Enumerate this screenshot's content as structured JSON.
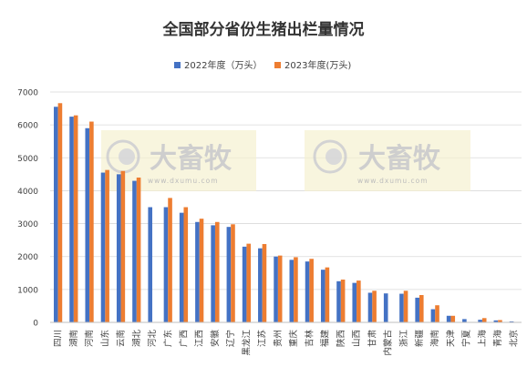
{
  "chart_data": {
    "type": "bar",
    "title": "全国部分省份生猪出栏量情况",
    "xlabel": "",
    "ylabel": "",
    "ylim": [
      0,
      7000
    ],
    "yticks": [
      0,
      1000,
      2000,
      3000,
      4000,
      5000,
      6000,
      7000
    ],
    "grid": true,
    "legend_position": "top-center",
    "categories": [
      "四川",
      "湖南",
      "河南",
      "山东",
      "云南",
      "湖北",
      "河北",
      "广东",
      "广西",
      "江西",
      "安徽",
      "辽宁",
      "黑龙江",
      "江苏",
      "贵州",
      "重庆",
      "吉林",
      "福建",
      "陕西",
      "山西",
      "甘肃",
      "内蒙古",
      "浙江",
      "新疆",
      "海南",
      "天津",
      "宁夏",
      "上海",
      "青海",
      "北京"
    ],
    "series": [
      {
        "name": "2022年度（万头）",
        "color": "#4472C4",
        "values": [
          6550,
          6250,
          5900,
          4550,
          4500,
          4300,
          3500,
          3500,
          3330,
          3050,
          2950,
          2900,
          2300,
          2250,
          2000,
          1900,
          1850,
          1600,
          1250,
          1200,
          900,
          880,
          870,
          750,
          400,
          200,
          100,
          80,
          60,
          30
        ]
      },
      {
        "name": "2023年度(万头)",
        "color": "#ED7D31",
        "values": [
          6660,
          6290,
          6100,
          4630,
          4600,
          4400,
          null,
          3780,
          3500,
          3150,
          3050,
          2980,
          2390,
          2380,
          2030,
          1980,
          1930,
          1670,
          1300,
          1270,
          960,
          null,
          960,
          830,
          520,
          200,
          null,
          130,
          70,
          null
        ]
      }
    ]
  },
  "watermark": {
    "text": "大畜牧",
    "sub": "www.dxumu.com"
  }
}
